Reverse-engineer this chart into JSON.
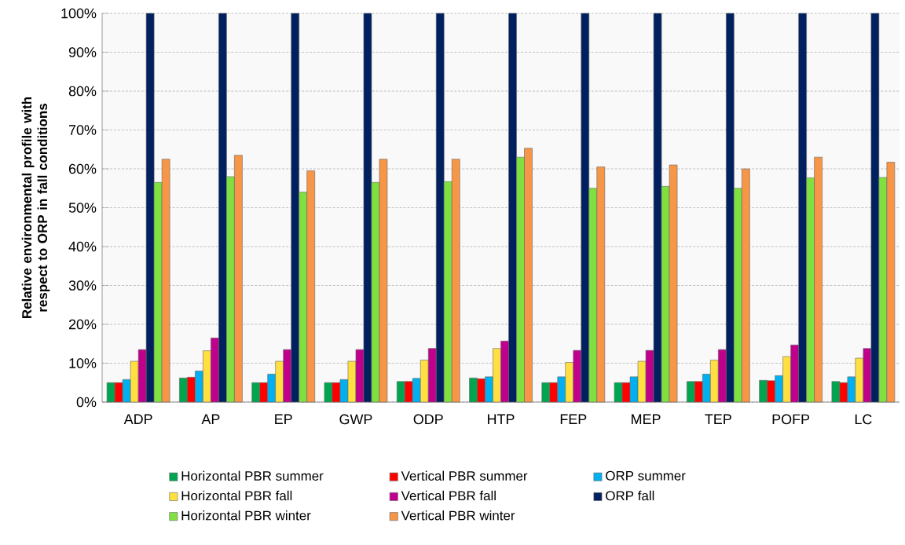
{
  "chart_data": {
    "type": "bar",
    "ylabel": "Relative environmental profile with respect to ORP in fall conditions",
    "categories": [
      "ADP",
      "AP",
      "EP",
      "GWP",
      "ODP",
      "HTP",
      "FEP",
      "MEP",
      "TEP",
      "POFP",
      "LC"
    ],
    "series": [
      {
        "name": "Horizontal PBR summer",
        "color": "#00a550",
        "values": [
          5,
          6.2,
          5,
          5,
          5.3,
          6.2,
          5,
          5,
          5.3,
          5.6,
          5.3
        ]
      },
      {
        "name": "Vertical PBR summer",
        "color": "#ff0000",
        "values": [
          5,
          6.4,
          5,
          5,
          5.3,
          6,
          5,
          5,
          5.3,
          5.5,
          5
        ]
      },
      {
        "name": "ORP summer",
        "color": "#00b0f0",
        "values": [
          5.8,
          8,
          7.2,
          5.8,
          6.1,
          6.5,
          6.5,
          6.5,
          7.2,
          6.8,
          6.5
        ]
      },
      {
        "name": "Horizontal PBR fall",
        "color": "#ffe040",
        "values": [
          10.5,
          13.2,
          10.5,
          10.5,
          10.8,
          13.8,
          10.2,
          10.5,
          10.8,
          11.7,
          11.3
        ]
      },
      {
        "name": "Vertical PBR fall",
        "color": "#c0008c",
        "values": [
          13.5,
          16.5,
          13.5,
          13.5,
          13.8,
          15.7,
          13.3,
          13.3,
          13.5,
          14.7,
          13.8
        ]
      },
      {
        "name": "ORP fall",
        "color": "#002060",
        "values": [
          100,
          100,
          100,
          100,
          100,
          100,
          100,
          100,
          100,
          100,
          100
        ]
      },
      {
        "name": "Horizontal PBR winter",
        "color": "#80e040",
        "values": [
          56.5,
          58,
          54,
          56.5,
          56.7,
          63,
          55,
          55.5,
          55,
          57.7,
          57.8
        ]
      },
      {
        "name": "Vertical PBR winter",
        "color": "#f79646",
        "values": [
          62.5,
          63.5,
          59.5,
          62.5,
          62.5,
          65.3,
          60.5,
          61,
          60,
          63,
          61.7
        ]
      }
    ],
    "ylim": [
      0,
      100
    ],
    "yticks": [
      {
        "value": 0,
        "label": "0%"
      },
      {
        "value": 10,
        "label": "10%"
      },
      {
        "value": 20,
        "label": "20%"
      },
      {
        "value": 30,
        "label": "30%"
      },
      {
        "value": 40,
        "label": "40%"
      },
      {
        "value": 50,
        "label": "50%"
      },
      {
        "value": 60,
        "label": "60%"
      },
      {
        "value": 70,
        "label": "70%"
      },
      {
        "value": 80,
        "label": "80%"
      },
      {
        "value": 90,
        "label": "90%"
      },
      {
        "value": 100,
        "label": "100%"
      }
    ],
    "grid": "y",
    "legend": "bottom"
  }
}
